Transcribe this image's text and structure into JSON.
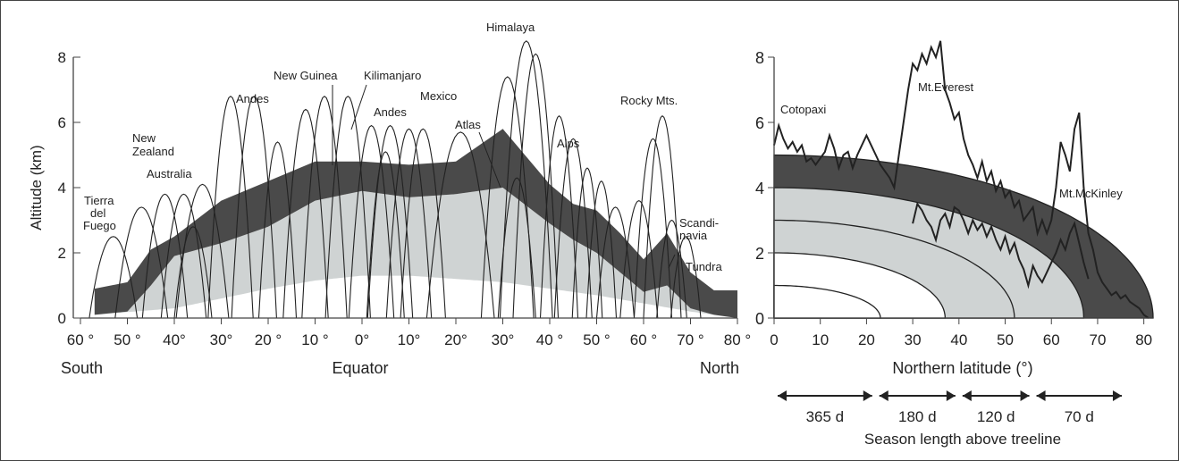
{
  "colors": {
    "treeline_band": "#4a4a4a",
    "montane": "#cfd3d3",
    "lowland": "#ffffff",
    "line": "#222222",
    "frame": "#444444"
  },
  "chart_data": [
    {
      "type": "area",
      "ylabel": "Altitude (km)",
      "ylim": [
        0,
        8
      ],
      "yticks": [
        "0",
        "2",
        "4",
        "6",
        "8"
      ],
      "xticks": [
        "60 °",
        "50 °",
        "40°",
        "30°",
        "20 °",
        "10 °",
        "0°",
        "10°",
        "20°",
        "30°",
        "40 °",
        "50 °",
        "60 °",
        "70 °",
        "80 °"
      ],
      "xaxis_words": {
        "south": "South",
        "equator": "Equator",
        "north": "North"
      },
      "treeline_band": {
        "x": [
          -57,
          -50,
          -45,
          -40,
          -30,
          -20,
          -10,
          0,
          10,
          20,
          30,
          40,
          45,
          50,
          55,
          60,
          65,
          70,
          75,
          80
        ],
        "upper": [
          0.9,
          1.1,
          2.1,
          2.5,
          3.6,
          4.2,
          4.8,
          4.8,
          4.7,
          4.8,
          5.8,
          4.1,
          3.5,
          3.3,
          2.6,
          1.8,
          2.6,
          1.4,
          0.85,
          0.85
        ],
        "lower": [
          0.1,
          0.2,
          1.0,
          1.9,
          2.3,
          2.8,
          3.6,
          3.9,
          3.7,
          3.8,
          4.0,
          2.9,
          2.4,
          2.0,
          1.4,
          0.8,
          1.0,
          0.3,
          0.1,
          0.0
        ]
      },
      "montane_zone": {
        "x": [
          -57,
          -40,
          -30,
          -20,
          -10,
          0,
          10,
          20,
          30,
          40,
          50,
          60,
          70,
          80
        ],
        "lower": [
          0.1,
          0.3,
          0.6,
          0.9,
          1.15,
          1.3,
          1.3,
          1.2,
          1.1,
          0.9,
          0.7,
          0.45,
          0.2,
          0.0
        ]
      },
      "mountains": [
        {
          "peak": -53,
          "h": 2.5,
          "hw": 3.2
        },
        {
          "peak": -47,
          "h": 3.4,
          "hw": 3.5
        },
        {
          "peak": -42,
          "h": 3.8,
          "hw": 3.0
        },
        {
          "peak": -38,
          "h": 3.8,
          "hw": 3.0
        },
        {
          "peak": -34,
          "h": 4.1,
          "hw": 3.5
        },
        {
          "peak": -36,
          "h": 2.8,
          "hw": 2.5
        },
        {
          "peak": -28,
          "h": 6.8,
          "hw": 3.0
        },
        {
          "peak": -23,
          "h": 6.8,
          "hw": 3.0
        },
        {
          "peak": -18,
          "h": 5.4,
          "hw": 2.5
        },
        {
          "peak": -12,
          "h": 6.4,
          "hw": 3.0
        },
        {
          "peak": -8,
          "h": 6.8,
          "hw": 3.0
        },
        {
          "peak": -3,
          "h": 6.8,
          "hw": 3.0
        },
        {
          "peak": 2,
          "h": 5.9,
          "hw": 3.0
        },
        {
          "peak": 5,
          "h": 5.1,
          "hw": 2.5
        },
        {
          "peak": 6,
          "h": 5.9,
          "hw": 3.0
        },
        {
          "peak": 10,
          "h": 5.8,
          "hw": 3.0
        },
        {
          "peak": 13,
          "h": 5.8,
          "hw": 3.0
        },
        {
          "peak": 21,
          "h": 5.7,
          "hw": 4.5
        },
        {
          "peak": 31,
          "h": 7.4,
          "hw": 3.5
        },
        {
          "peak": 35,
          "h": 8.5,
          "hw": 3.5
        },
        {
          "peak": 37,
          "h": 8.1,
          "hw": 3.0
        },
        {
          "peak": 33,
          "h": 4.3,
          "hw": 2.5
        },
        {
          "peak": 42,
          "h": 6.2,
          "hw": 2.5
        },
        {
          "peak": 45,
          "h": 5.5,
          "hw": 2.5
        },
        {
          "peak": 48,
          "h": 4.6,
          "hw": 2.0
        },
        {
          "peak": 51,
          "h": 4.2,
          "hw": 2.0
        },
        {
          "peak": 54,
          "h": 3.4,
          "hw": 2.5
        },
        {
          "peak": 59,
          "h": 3.6,
          "hw": 2.5
        },
        {
          "peak": 62,
          "h": 5.5,
          "hw": 2.5
        },
        {
          "peak": 64,
          "h": 6.2,
          "hw": 2.5
        },
        {
          "peak": 66,
          "h": 3.0,
          "hw": 2.0
        },
        {
          "peak": 69,
          "h": 2.5,
          "hw": 2.0
        }
      ],
      "labels": {
        "tierra": [
          "Tierra",
          "del",
          "Fuego"
        ],
        "nz": [
          "New",
          "Zealand"
        ],
        "australia": "Australia",
        "andes1": "Andes",
        "newguinea": "New Guinea",
        "kilimanjaro": "Kilimanjaro",
        "andes2": "Andes",
        "mexico": "Mexico",
        "himalaya": "Himalaya",
        "atlas": "Atlas",
        "alps": "Alps",
        "rocky": "Rocky Mts.",
        "scandinavia": [
          "Scandi-",
          "navia"
        ],
        "tundra": "Tundra"
      }
    },
    {
      "type": "line",
      "xlabel": "Northern latitude (°)",
      "xlim": [
        0,
        82
      ],
      "ylim": [
        0,
        8
      ],
      "xticks": [
        "0",
        "10",
        "20",
        "30",
        "40",
        "50",
        "60",
        "70",
        "80"
      ],
      "yticks": [
        "0",
        "2",
        "4",
        "6",
        "8"
      ],
      "zone_heights": [
        5.0,
        4.0,
        3.0,
        2.0,
        1.0
      ],
      "zone_fills": [
        "#4a4a4a",
        "#cfd3d3",
        "#cfd3d3",
        "#ffffff",
        "#ffffff"
      ],
      "series": [
        {
          "name": "peak_outline",
          "x": [
            0,
            1,
            2,
            3,
            4,
            5,
            6,
            7,
            8,
            9,
            10,
            11,
            12,
            13,
            14,
            15,
            16,
            17,
            18,
            19,
            20,
            21,
            22,
            23,
            24,
            25,
            26,
            27,
            28,
            29,
            30,
            31,
            32,
            33,
            34,
            35,
            36,
            37,
            38,
            39,
            40,
            41,
            42,
            43,
            44,
            45,
            46,
            47,
            48,
            49,
            50,
            51,
            52,
            53,
            54,
            55,
            56,
            57,
            58,
            59,
            60,
            61,
            62,
            63,
            64,
            65,
            66,
            67,
            68,
            69,
            70,
            71,
            72,
            73,
            74,
            75,
            76,
            77,
            78,
            79,
            80,
            81
          ],
          "y": [
            5.3,
            5.9,
            5.5,
            5.2,
            5.4,
            5.1,
            5.3,
            4.8,
            4.9,
            4.7,
            4.9,
            5.1,
            5.6,
            5.2,
            4.6,
            5.0,
            5.1,
            4.6,
            5.0,
            5.3,
            5.6,
            5.3,
            5.0,
            4.7,
            4.5,
            4.3,
            4.0,
            5.0,
            6.0,
            7.0,
            7.8,
            7.6,
            8.1,
            7.8,
            8.3,
            8.0,
            8.5,
            7.0,
            6.6,
            6.1,
            6.3,
            5.5,
            5.0,
            4.7,
            4.3,
            4.8,
            4.2,
            4.5,
            3.9,
            4.2,
            3.7,
            3.9,
            3.4,
            3.6,
            3.0,
            3.2,
            3.4,
            2.6,
            3.0,
            2.6,
            3.0,
            4.0,
            5.4,
            5.0,
            4.5,
            5.8,
            6.3,
            4.0,
            2.6,
            2.1,
            1.4,
            1.1,
            0.9,
            0.7,
            0.8,
            0.6,
            0.7,
            0.5,
            0.4,
            0.3,
            0.1,
            0.0
          ]
        },
        {
          "name": "treeline_trace",
          "x": [
            30,
            31,
            32,
            33,
            34,
            35,
            36,
            37,
            38,
            39,
            40,
            41,
            42,
            43,
            44,
            45,
            46,
            47,
            48,
            49,
            50,
            51,
            52,
            53,
            54,
            55,
            56,
            57,
            58,
            59,
            60,
            61,
            62,
            63,
            64,
            65,
            66,
            67,
            68
          ],
          "y": [
            2.9,
            3.5,
            3.3,
            3.0,
            2.8,
            2.4,
            3.0,
            3.2,
            2.8,
            3.4,
            3.3,
            3.0,
            2.6,
            3.0,
            2.7,
            2.9,
            2.5,
            2.8,
            2.4,
            2.1,
            2.5,
            2.0,
            2.3,
            1.8,
            1.5,
            1.0,
            1.6,
            1.3,
            1.1,
            1.4,
            1.7,
            2.0,
            2.4,
            2.1,
            2.6,
            2.9,
            2.3,
            1.7,
            1.2
          ]
        }
      ],
      "annotations": {
        "cotopaxi": "Cotopaxi",
        "everest": "Mt.Everest",
        "mckinley": "Mt.McKinley"
      },
      "seasons": [
        {
          "from": 0,
          "to": 22,
          "label": "365 d"
        },
        {
          "from": 22,
          "to": 40,
          "label": "180 d"
        },
        {
          "from": 40,
          "to": 56,
          "label": "120 d"
        },
        {
          "from": 56,
          "to": 76,
          "label": "70 d"
        }
      ],
      "season_caption": "Season length above treeline"
    }
  ]
}
